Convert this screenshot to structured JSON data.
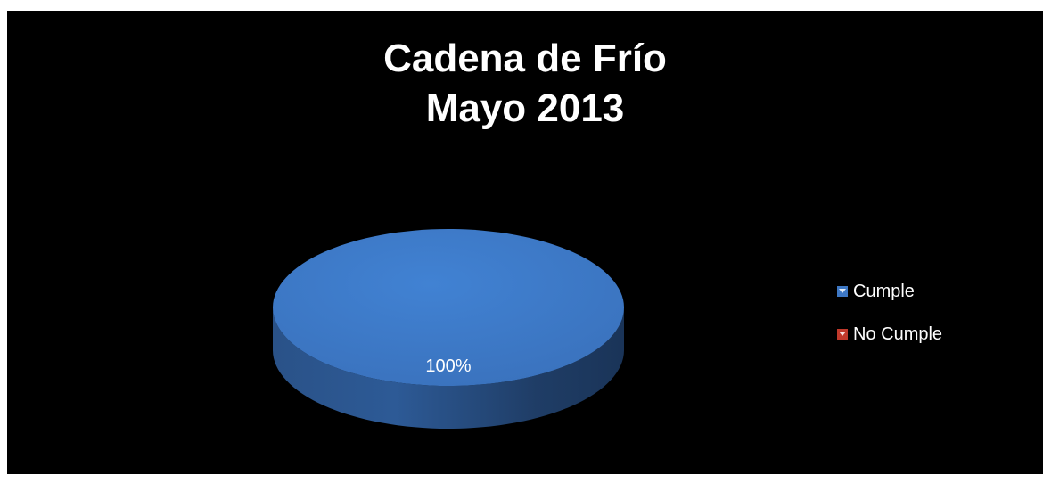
{
  "chart_data": {
    "type": "pie",
    "title": [
      "Cadena de Frío",
      "Mayo 2013"
    ],
    "categories": [
      "Cumple",
      "No Cumple"
    ],
    "values": [
      100,
      0
    ],
    "data_labels": [
      "100%"
    ],
    "colors": [
      "#3d77c4",
      "#c0392b"
    ],
    "legend_position": "right",
    "style": "3d"
  }
}
